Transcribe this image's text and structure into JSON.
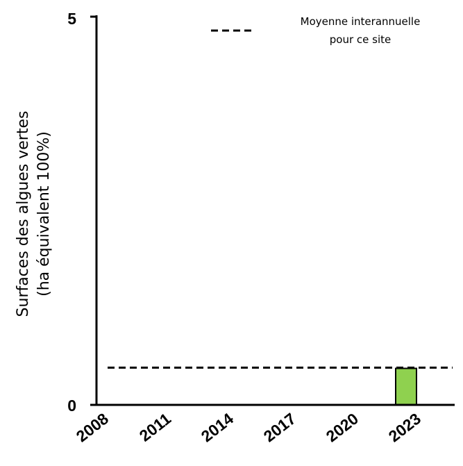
{
  "chart_data": {
    "type": "bar",
    "ylabel": [
      "Surfaces des algues vertes",
      "(ha équivalent 100%)"
    ],
    "ylim": [
      0,
      5
    ],
    "yticks": [
      "0",
      "5"
    ],
    "x_tick_labels": [
      "2008",
      "2011",
      "2014",
      "2017",
      "2020",
      "2023"
    ],
    "x_range": [
      2008,
      2024
    ],
    "bars": [
      {
        "year": 2022,
        "value": 0.47
      }
    ],
    "reference_line": {
      "label": [
        "Moyenne interannuelle",
        "pour ce site"
      ],
      "value": 0.48,
      "style": "dashed"
    },
    "legend_placement": "top-right",
    "colors": {
      "bar": "#8fd14f",
      "bar_edge": "#000000",
      "axis": "#000000",
      "line": "#000000"
    }
  }
}
